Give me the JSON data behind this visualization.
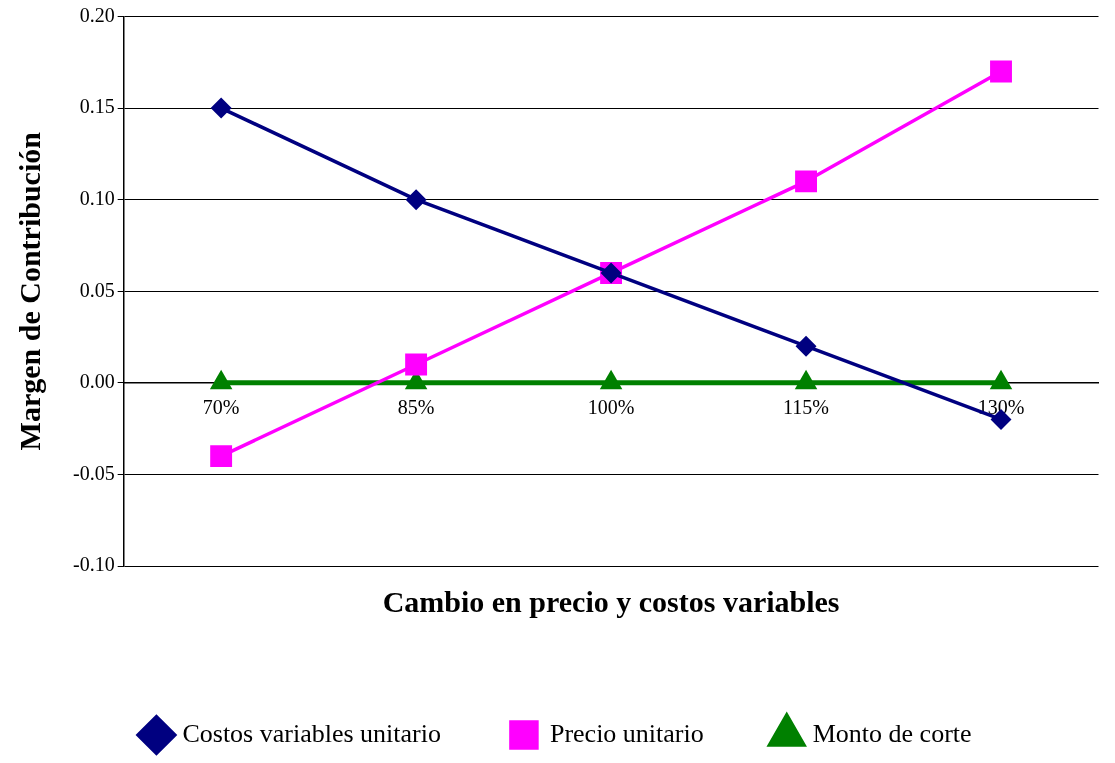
{
  "chart_data": {
    "type": "line",
    "xlabel": "Cambio en precio y costos variables",
    "ylabel": "Margen de Contribución",
    "categories": [
      "70%",
      "85%",
      "100%",
      "115%",
      "130%"
    ],
    "ylim": [
      -0.1,
      0.2
    ],
    "yticks": [
      {
        "value": -0.1,
        "label": "-0.10"
      },
      {
        "value": -0.05,
        "label": "-0.05"
      },
      {
        "value": 0,
        "label": "0.00"
      },
      {
        "value": 0.05,
        "label": "0.05"
      },
      {
        "value": 0.1,
        "label": "0.10"
      },
      {
        "value": 0.15,
        "label": "0.15"
      },
      {
        "value": 0.2,
        "label": "0.20"
      }
    ],
    "grid": "y",
    "legend": "bottom",
    "line_style": "solid",
    "series": [
      {
        "name": "Costos variables unitario",
        "color": "#000080",
        "marker": "diamond",
        "values": [
          0.15,
          0.1,
          0.06,
          0.02,
          -0.02
        ]
      },
      {
        "name": "Precio unitario",
        "color": "#ff00ff",
        "marker": "square",
        "values": [
          -0.04,
          0.01,
          0.06,
          0.11,
          0.17
        ]
      },
      {
        "name": "Monto de corte",
        "color": "#008000",
        "marker": "triangle",
        "values": [
          0,
          0,
          0,
          0,
          0
        ]
      }
    ]
  }
}
